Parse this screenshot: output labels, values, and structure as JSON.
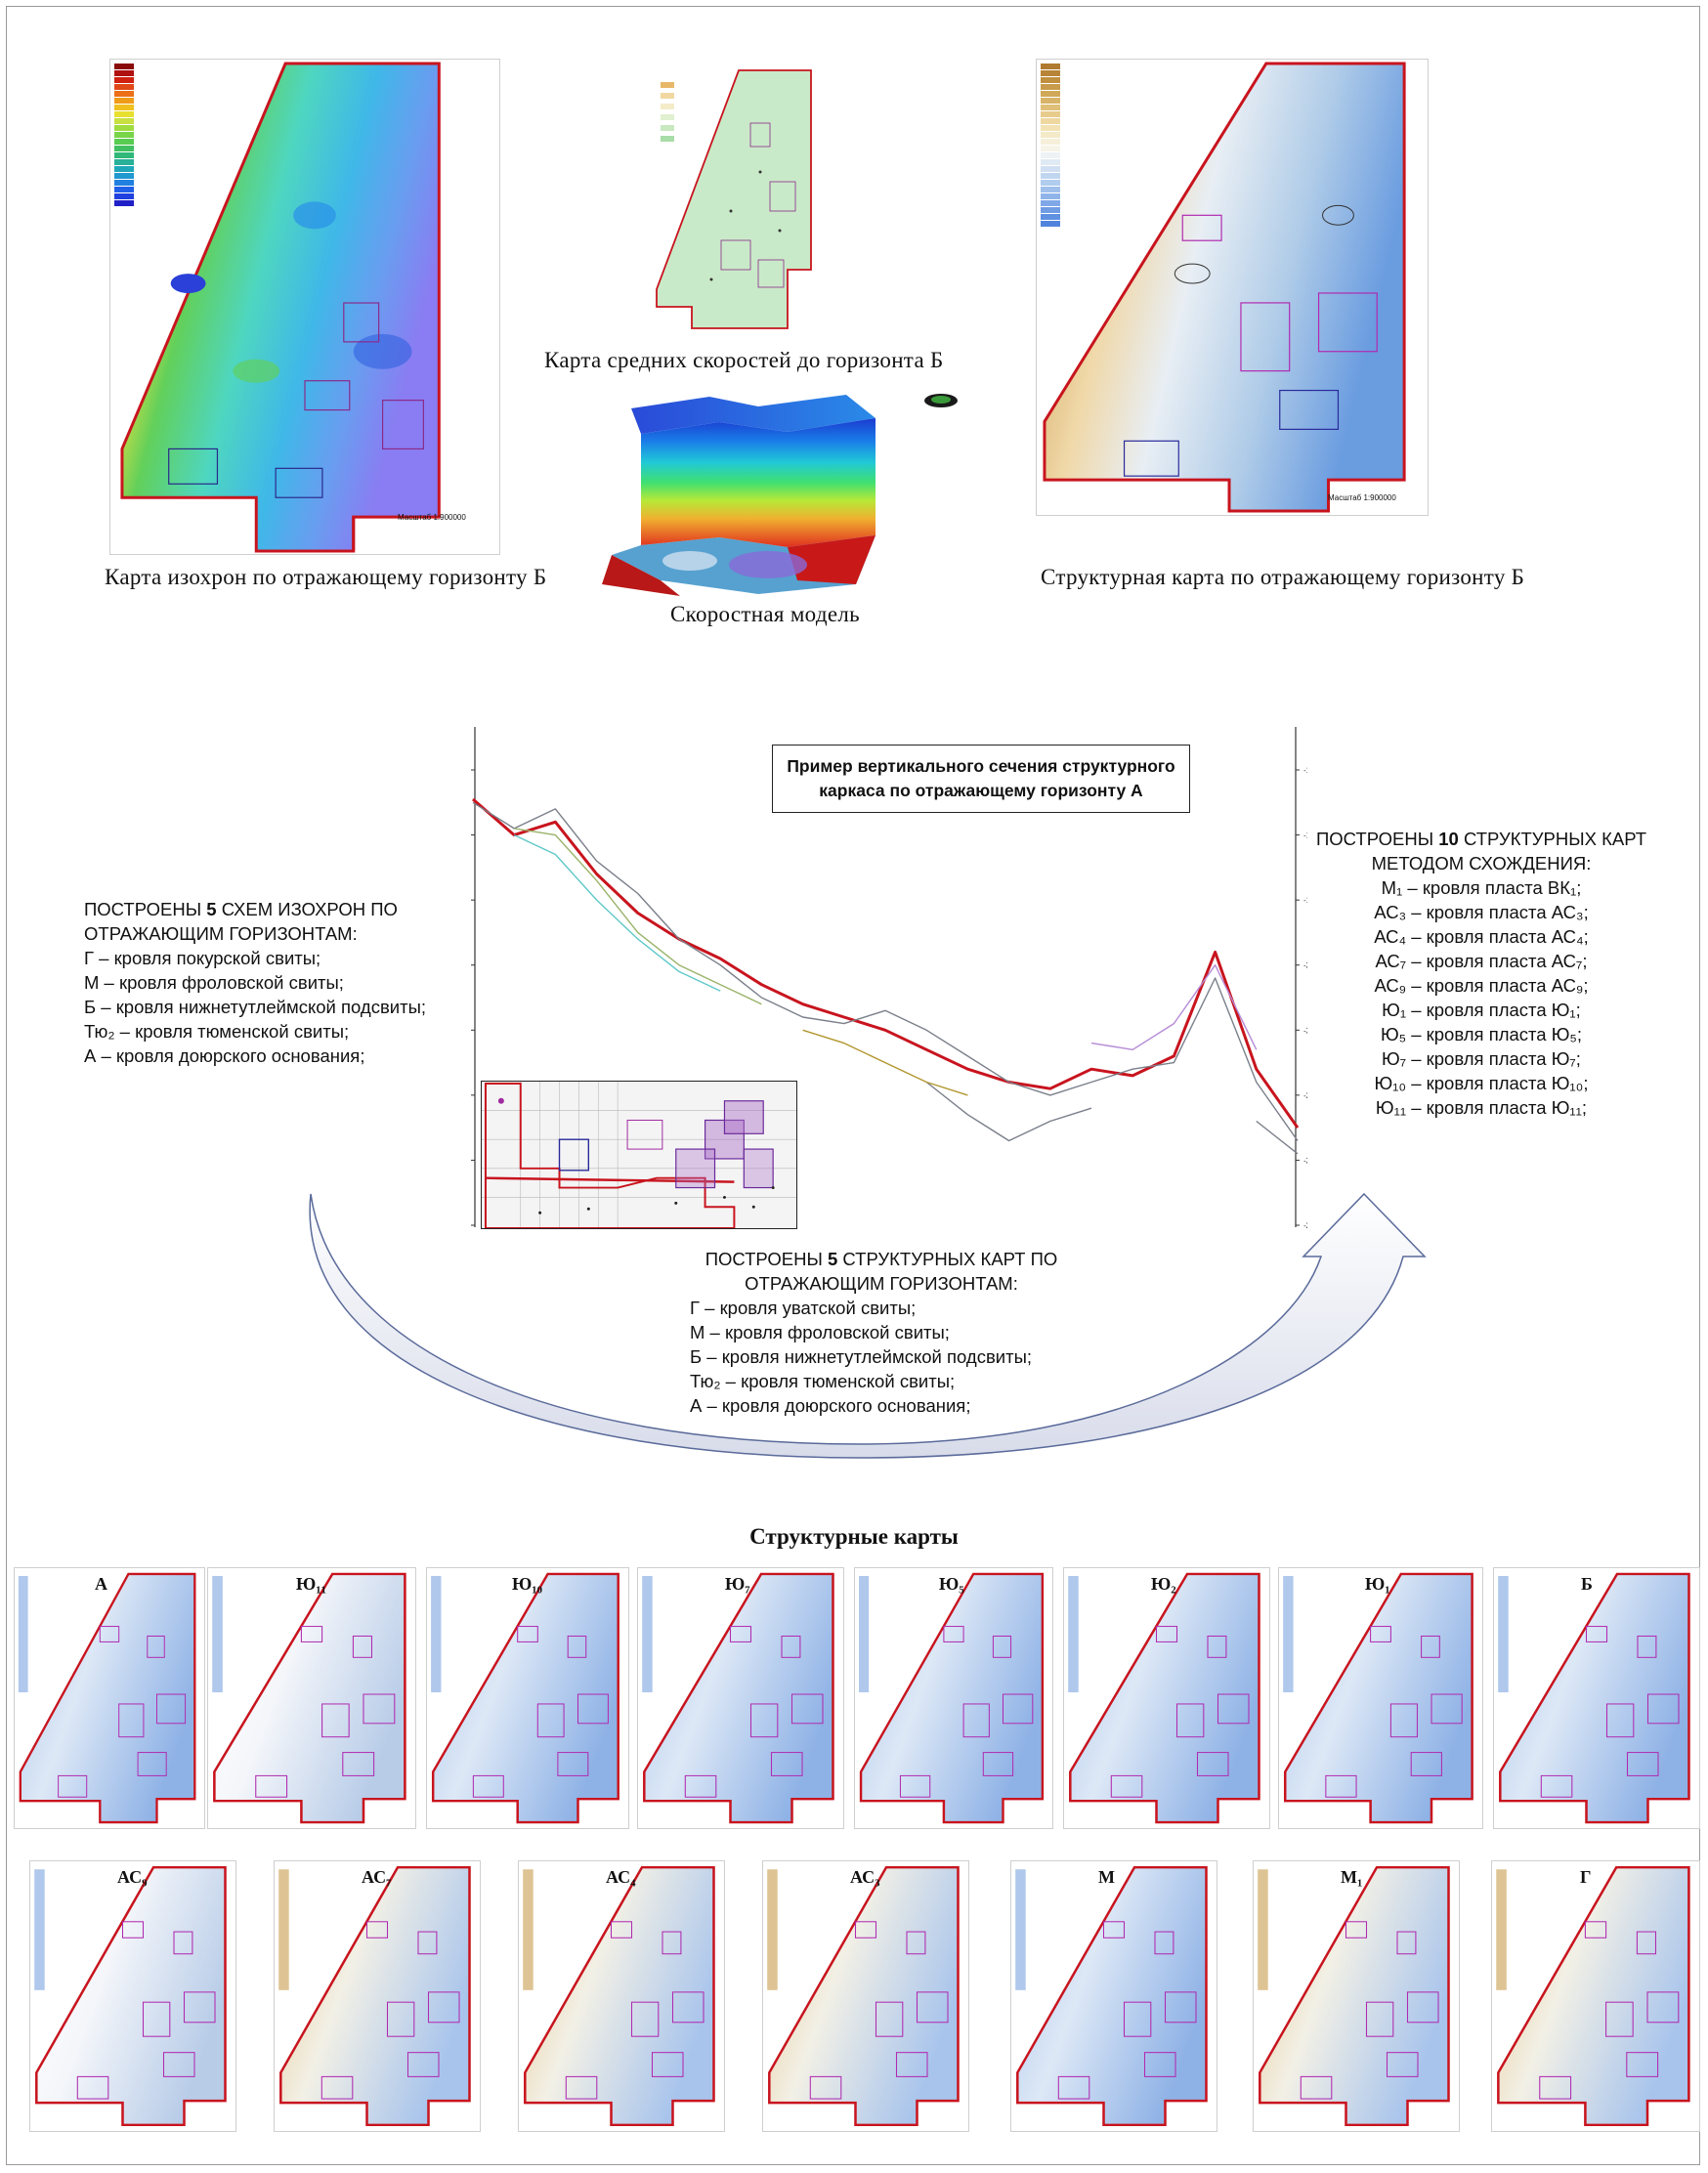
{
  "top_maps": {
    "isochron_caption": "Карта изохрон по отражающему горизонту Б",
    "velocity_caption": "Карта средних скоростей до горизонта Б",
    "model_caption": "Скоростная модель",
    "structural_caption": "Структурная карта по отражающему горизонту Б",
    "scale_label": "Масштаб 1:900000"
  },
  "left_info": {
    "heading_1": "ПОСТРОЕНЫ",
    "heading_count": "5",
    "heading_2": "СХЕМ ИЗОХРОН ПО",
    "heading_3": "ОТРАЖАЮЩИМ ГОРИЗОНТАМ:",
    "items": [
      "Г – кровля покурской свиты;",
      "М – кровля фроловской свиты;",
      "Б – кровля нижнетутлеймской подсвиты;",
      "Тю₂ – кровля тюменской свиты;",
      "А – кровля доюрского основания;"
    ]
  },
  "right_info": {
    "heading_1": "ПОСТРОЕНЫ",
    "heading_count": "10",
    "heading_2": "СТРУКТУРНЫХ КАРТ",
    "heading_3": "МЕТОДОМ СХОЖДЕНИЯ:",
    "items": [
      "М₁ – кровля пласта ВК₁;",
      "АС₃ – кровля пласта АС₃;",
      "АС₄ – кровля пласта АС₄;",
      "АС₇ – кровля пласта АС₇;",
      "АС₉ – кровля пласта АС₉;",
      "Ю₁ – кровля пласта Ю₁;",
      "Ю₅ – кровля пласта Ю₅;",
      "Ю₇ – кровля пласта Ю₇;",
      "Ю₁₀ – кровля пласта Ю₁₀;",
      "Ю₁₁ – кровля пласта Ю₁₁;"
    ]
  },
  "bottom_info": {
    "heading_1": "ПОСТРОЕНЫ",
    "heading_count": "5",
    "heading_2": "СТРУКТУРНЫХ КАРТ ПО",
    "heading_3": "ОТРАЖАЮЩИМ ГОРИЗОНТАМ:",
    "items": [
      "Г – кровля уватской свиты;",
      "М – кровля фроловской свиты;",
      "Б – кровля нижнетутлеймской подсвиты;",
      "Тю₂ – кровля тюменской свиты;",
      "А – кровля доюрского основания;"
    ]
  },
  "section": {
    "title_1": "Пример вертикального сечения структурного",
    "title_2": "каркаса по отражающему горизонту А"
  },
  "chart_data": {
    "type": "line",
    "title": "Пример вертикального сечения структурного каркаса по отражающему горизонту А",
    "y_ticks": [
      -1700,
      -1800,
      -1900,
      -2000,
      -2100,
      -2200,
      -2300,
      -2400
    ],
    "ylim": [
      -2400,
      -1700
    ],
    "x": [
      0,
      0.05,
      0.1,
      0.15,
      0.2,
      0.25,
      0.3,
      0.35,
      0.4,
      0.45,
      0.5,
      0.55,
      0.6,
      0.65,
      0.7,
      0.75,
      0.8,
      0.85,
      0.9,
      0.95,
      1.0
    ],
    "series": [
      {
        "color": "#c8141e",
        "values": [
          -1745,
          -1800,
          -1780,
          -1860,
          -1920,
          -1960,
          -1990,
          -2030,
          -2060,
          -2080,
          -2100,
          -2130,
          -2160,
          -2180,
          -2190,
          -2160,
          -2170,
          -2140,
          -1980,
          -2160,
          -2250
        ]
      },
      {
        "color": "#7a7f8a",
        "values": [
          -1750,
          -1790,
          -1760,
          -1840,
          -1890,
          -1960,
          -2000,
          -2050,
          -2080,
          -2090,
          -2070,
          -2100,
          -2140,
          -2180,
          -2200,
          -2180,
          -2160,
          -2150,
          -2020,
          -2180,
          -2270
        ]
      },
      {
        "color": "#7a7f8a",
        "values": [
          null,
          null,
          null,
          null,
          null,
          null,
          null,
          null,
          null,
          null,
          null,
          -2180,
          -2230,
          -2270,
          -2240,
          -2220,
          null,
          null,
          null,
          -2240,
          -2290
        ]
      },
      {
        "color": "#9ab36a",
        "values": [
          null,
          -1790,
          -1800,
          -1870,
          -1950,
          -2000,
          -2030,
          -2060,
          null,
          null,
          null,
          null,
          null,
          null,
          null,
          null,
          null,
          null,
          null,
          null,
          null
        ]
      },
      {
        "color": "#5fc8c8",
        "values": [
          null,
          -1800,
          -1830,
          -1900,
          -1960,
          -2010,
          -2040,
          null,
          null,
          null,
          null,
          null,
          null,
          null,
          null,
          null,
          null,
          null,
          null,
          null,
          null
        ]
      },
      {
        "color": "#b2962e",
        "values": [
          null,
          null,
          null,
          null,
          null,
          null,
          null,
          null,
          -2100,
          -2120,
          -2150,
          -2180,
          -2200,
          null,
          null,
          null,
          null,
          null,
          null,
          null,
          null
        ]
      },
      {
        "color": "#b58ad6",
        "values": [
          null,
          null,
          null,
          null,
          null,
          null,
          null,
          null,
          null,
          null,
          null,
          null,
          null,
          null,
          null,
          -2120,
          -2130,
          -2090,
          -2000,
          -2130,
          null
        ]
      }
    ]
  },
  "structural_maps": {
    "title": "Структурные карты",
    "row1": [
      {
        "label": "А",
        "style": "blue"
      },
      {
        "label": "Ю₁₁",
        "style": "white"
      },
      {
        "label": "Ю₁₀",
        "style": "blue"
      },
      {
        "label": "Ю₇",
        "style": "blue"
      },
      {
        "label": "Ю₅",
        "style": "blue"
      },
      {
        "label": "Ю₂",
        "style": "blue"
      },
      {
        "label": "Ю₁",
        "style": "blue"
      },
      {
        "label": "Б",
        "style": "blue"
      }
    ],
    "row2": [
      {
        "label": "АС₉",
        "style": "white"
      },
      {
        "label": "АС₇",
        "style": "warm"
      },
      {
        "label": "АС₄",
        "style": "warm"
      },
      {
        "label": "АС₃",
        "style": "warm"
      },
      {
        "label": "М",
        "style": "blue"
      },
      {
        "label": "М₁",
        "style": "warm"
      },
      {
        "label": "Г",
        "style": "warm"
      }
    ]
  }
}
